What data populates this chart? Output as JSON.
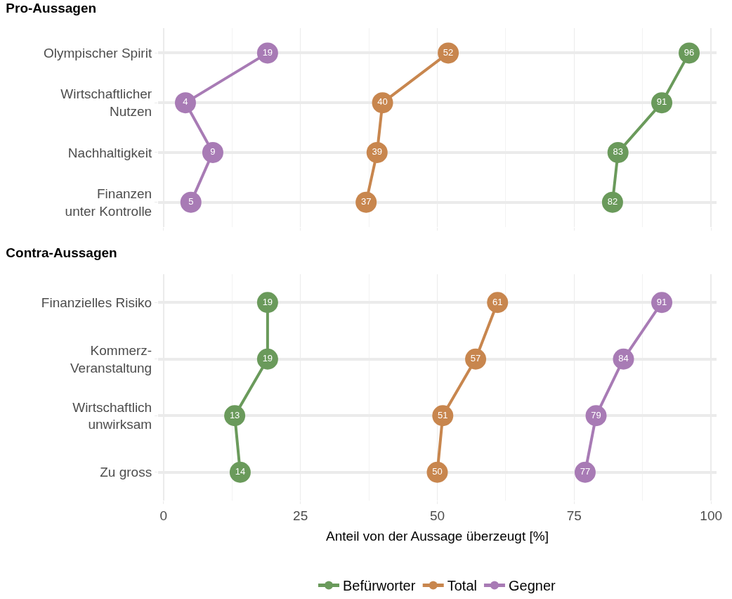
{
  "chart_data": [
    {
      "type": "line",
      "orientation": "horizontal",
      "title": "Pro-Aussagen",
      "categories": [
        "Olympischer Spirit",
        "Wirtschaftlicher\nNutzen",
        "Nachhaltigkeit",
        "Finanzen\nunter Kontrolle"
      ],
      "series": [
        {
          "color": "#6a9a5b",
          "values": [
            96,
            91,
            83,
            82
          ]
        },
        {
          "color": "#c8864e",
          "values": [
            52,
            40,
            39,
            37
          ]
        },
        {
          "color": "#a87bb5",
          "values": [
            19,
            4,
            9,
            5
          ]
        }
      ],
      "xlim": [
        -1,
        101
      ],
      "xticks": [
        0,
        25,
        50,
        75,
        100
      ],
      "tick_labels": "y",
      "grid": true,
      "legend": false,
      "marker": "circle",
      "line_style": "solid",
      "data_labels": true
    },
    {
      "type": "line",
      "orientation": "horizontal",
      "title": "Contra-Aussagen",
      "xlabel": "Anteil von der Aussage überzeugt [%]",
      "categories": [
        "Finanzielles Risiko",
        "Kommerz-\nVeranstaltung",
        "Wirtschaftlich\nunwirksam",
        "Zu gross"
      ],
      "series": [
        {
          "name": "Befürworter",
          "color": "#6a9a5b",
          "values": [
            19,
            19,
            13,
            14
          ]
        },
        {
          "name": "Total",
          "color": "#c8864e",
          "values": [
            61,
            57,
            51,
            50
          ]
        },
        {
          "name": "Gegner",
          "color": "#a87bb5",
          "values": [
            91,
            84,
            79,
            77
          ]
        }
      ],
      "xlim": [
        -1,
        101
      ],
      "xticks": [
        0,
        25,
        50,
        75,
        100
      ],
      "grid": true,
      "legend": "bottom",
      "marker": "circle",
      "line_style": "solid",
      "data_labels": true
    }
  ]
}
